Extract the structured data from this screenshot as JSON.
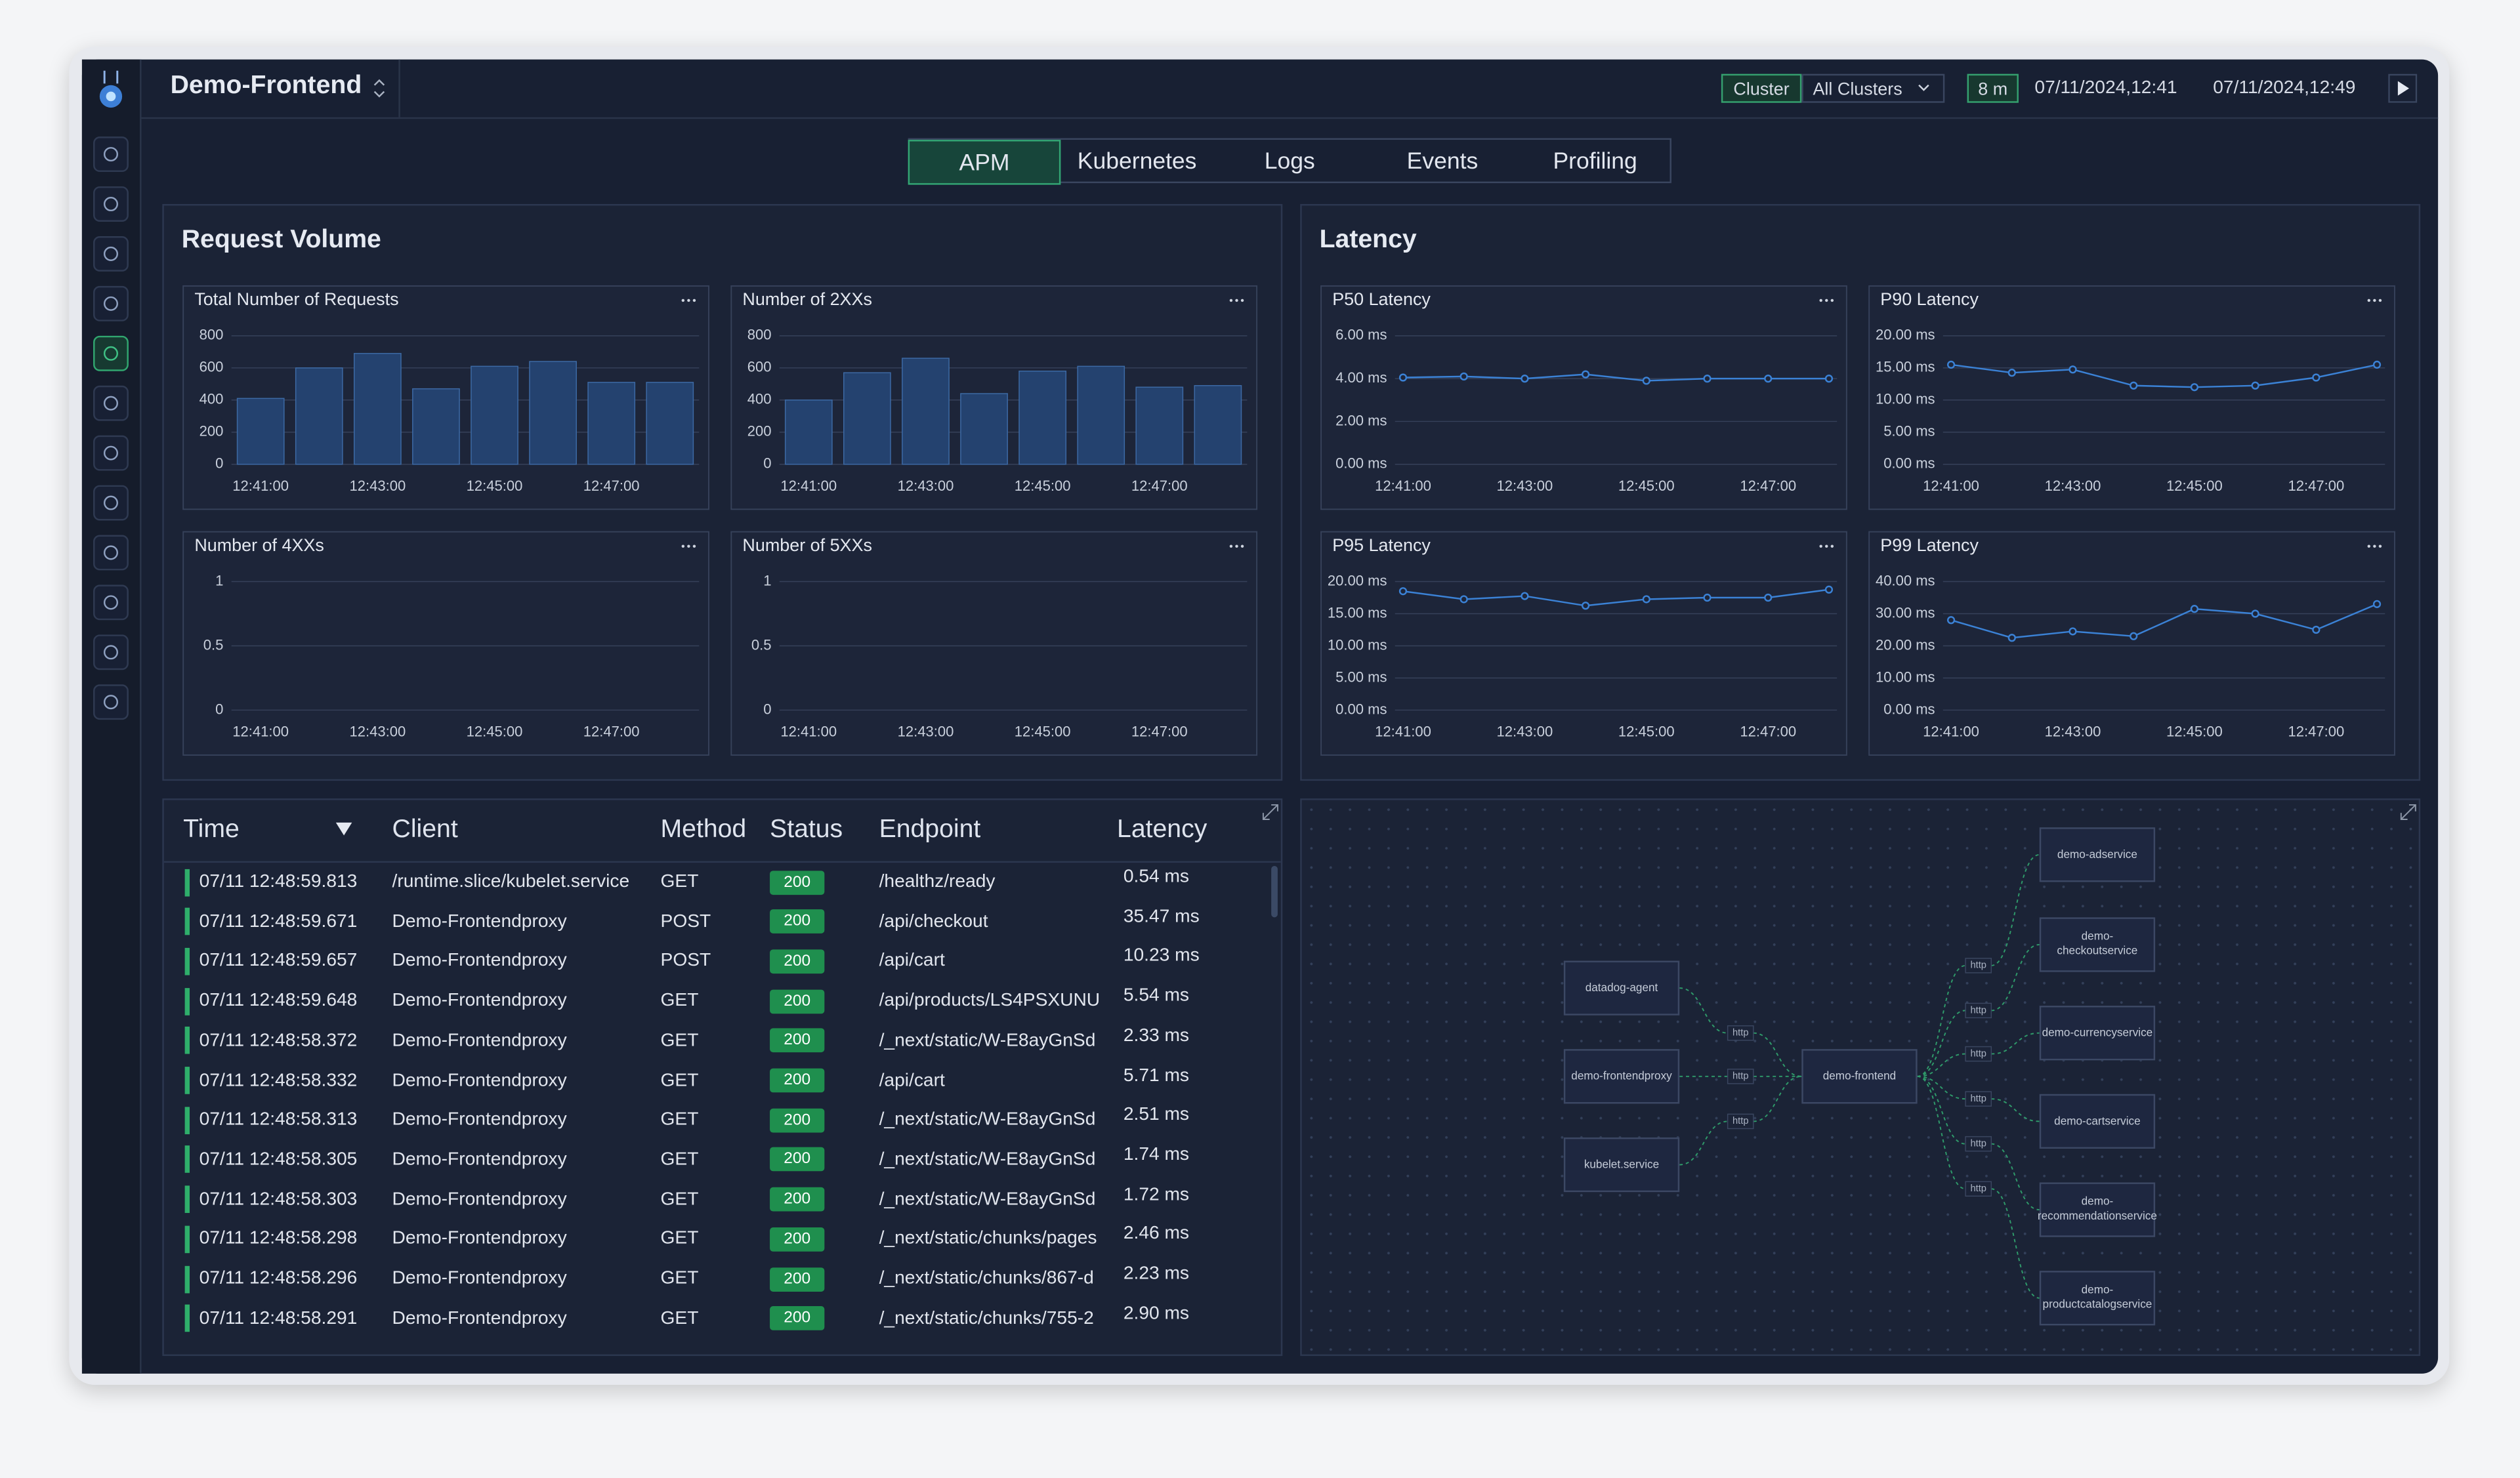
{
  "header": {
    "title": "Demo-Frontend",
    "cluster_label": "Cluster",
    "cluster_value": "All Clusters",
    "range": "8 m",
    "start": "07/11/2024,12:41",
    "end": "07/11/2024,12:49"
  },
  "tabs": [
    "APM",
    "Kubernetes",
    "Logs",
    "Events",
    "Profiling"
  ],
  "panels": {
    "request_volume": "Request Volume",
    "latency": "Latency"
  },
  "chart_data": [
    {
      "type": "bar",
      "title": "Total Number of Requests",
      "categories": [
        "12:41:00",
        null,
        "12:43:00",
        null,
        "12:45:00",
        null,
        "12:47:00",
        null
      ],
      "values": [
        410,
        600,
        690,
        470,
        610,
        640,
        510,
        510
      ],
      "color": "#24426f",
      "ylim": [
        0,
        800
      ],
      "yticks": [
        0,
        200,
        400,
        600,
        800
      ],
      "grid": true
    },
    {
      "type": "bar",
      "title": "Number of 2XXs",
      "categories": [
        "12:41:00",
        null,
        "12:43:00",
        null,
        "12:45:00",
        null,
        "12:47:00",
        null
      ],
      "values": [
        400,
        570,
        660,
        440,
        580,
        610,
        480,
        490
      ],
      "color": "#24426f",
      "ylim": [
        0,
        800
      ],
      "yticks": [
        0,
        200,
        400,
        600,
        800
      ],
      "grid": true
    },
    {
      "type": "bar",
      "title": "Number of 4XXs",
      "categories": [
        "12:41:00",
        null,
        "12:43:00",
        null,
        "12:45:00",
        null,
        "12:47:00",
        null
      ],
      "values": [
        0,
        0,
        0,
        0,
        0,
        0,
        0,
        0
      ],
      "color": "#24426f",
      "ylim": [
        0,
        1
      ],
      "yticks": [
        0,
        0.5,
        1
      ],
      "grid": true
    },
    {
      "type": "bar",
      "title": "Number of 5XXs",
      "categories": [
        "12:41:00",
        null,
        "12:43:00",
        null,
        "12:45:00",
        null,
        "12:47:00",
        null
      ],
      "values": [
        0,
        0,
        0,
        0,
        0,
        0,
        0,
        0
      ],
      "color": "#24426f",
      "ylim": [
        0,
        1
      ],
      "yticks": [
        0,
        0.5,
        1
      ],
      "grid": true
    },
    {
      "type": "line",
      "title": "P50 Latency",
      "categories": [
        "12:41:00",
        null,
        "12:43:00",
        null,
        "12:45:00",
        null,
        "12:47:00",
        null
      ],
      "values": [
        4.05,
        4.1,
        4.0,
        4.2,
        3.9,
        4.0,
        4.0,
        4.0
      ],
      "color": "#3b82d6",
      "ylim": [
        0,
        6
      ],
      "yticks": [
        {
          "value": 0,
          "label": "0.00 ms"
        },
        {
          "value": 2,
          "label": "2.00 ms"
        },
        {
          "value": 4,
          "label": "4.00 ms"
        },
        {
          "value": 6,
          "label": "6.00 ms"
        }
      ],
      "grid": true
    },
    {
      "type": "line",
      "title": "P90 Latency",
      "categories": [
        "12:41:00",
        null,
        "12:43:00",
        null,
        "12:45:00",
        null,
        "12:47:00",
        null
      ],
      "values": [
        15.5,
        14.25,
        14.75,
        12.25,
        12,
        12.25,
        13.5,
        15.5
      ],
      "color": "#3b82d6",
      "ylim": [
        0,
        20
      ],
      "yticks": [
        {
          "value": 0,
          "label": "0.00 ms"
        },
        {
          "value": 5,
          "label": "5.00 ms"
        },
        {
          "value": 10,
          "label": "10.00 ms"
        },
        {
          "value": 15,
          "label": "15.00 ms"
        },
        {
          "value": 20,
          "label": "20.00 ms"
        }
      ],
      "grid": true
    },
    {
      "type": "line",
      "title": "P95 Latency",
      "categories": [
        "12:41:00",
        null,
        "12:43:00",
        null,
        "12:45:00",
        null,
        "12:47:00",
        null
      ],
      "values": [
        18.5,
        17.25,
        17.75,
        16.25,
        17.25,
        17.5,
        17.5,
        18.75
      ],
      "color": "#3b82d6",
      "ylim": [
        0,
        20
      ],
      "yticks": [
        {
          "value": 0,
          "label": "0.00 ms"
        },
        {
          "value": 5,
          "label": "5.00 ms"
        },
        {
          "value": 10,
          "label": "10.00 ms"
        },
        {
          "value": 15,
          "label": "15.00 ms"
        },
        {
          "value": 20,
          "label": "20.00 ms"
        }
      ],
      "grid": true
    },
    {
      "type": "line",
      "title": "P99 Latency",
      "categories": [
        "12:41:00",
        null,
        "12:43:00",
        null,
        "12:45:00",
        null,
        "12:47:00",
        null
      ],
      "values": [
        28,
        22.5,
        24.5,
        23,
        31.5,
        30,
        25,
        33
      ],
      "color": "#3b82d6",
      "ylim": [
        0,
        40
      ],
      "yticks": [
        {
          "value": 0,
          "label": "0.00 ms"
        },
        {
          "value": 10,
          "label": "10.00 ms"
        },
        {
          "value": 20,
          "label": "20.00 ms"
        },
        {
          "value": 30,
          "label": "30.00 ms"
        },
        {
          "value": 40,
          "label": "40.00 ms"
        }
      ],
      "grid": true
    }
  ],
  "table": {
    "columns": [
      "Time",
      "Client",
      "Method",
      "Status",
      "Endpoint",
      "Latency"
    ],
    "rows": [
      [
        "07/11 12:48:59.813",
        "/runtime.slice/kubelet.service",
        "GET",
        200,
        "/healthz/ready",
        "0.54 ms"
      ],
      [
        "07/11 12:48:59.671",
        "Demo-Frontendproxy",
        "POST",
        200,
        "/api/checkout",
        "35.47 ms"
      ],
      [
        "07/11 12:48:59.657",
        "Demo-Frontendproxy",
        "POST",
        200,
        "/api/cart",
        "10.23 ms"
      ],
      [
        "07/11 12:48:59.648",
        "Demo-Frontendproxy",
        "GET",
        200,
        "/api/products/LS4PSXUNU",
        "5.54 ms"
      ],
      [
        "07/11 12:48:58.372",
        "Demo-Frontendproxy",
        "GET",
        200,
        "/_next/static/W-E8ayGnSd",
        "2.33 ms"
      ],
      [
        "07/11 12:48:58.332",
        "Demo-Frontendproxy",
        "GET",
        200,
        "/api/cart",
        "5.71 ms"
      ],
      [
        "07/11 12:48:58.313",
        "Demo-Frontendproxy",
        "GET",
        200,
        "/_next/static/W-E8ayGnSd",
        "2.51 ms"
      ],
      [
        "07/11 12:48:58.305",
        "Demo-Frontendproxy",
        "GET",
        200,
        "/_next/static/W-E8ayGnSd",
        "1.74 ms"
      ],
      [
        "07/11 12:48:58.303",
        "Demo-Frontendproxy",
        "GET",
        200,
        "/_next/static/W-E8ayGnSd",
        "1.72 ms"
      ],
      [
        "07/11 12:48:58.298",
        "Demo-Frontendproxy",
        "GET",
        200,
        "/_next/static/chunks/pages",
        "2.46 ms"
      ],
      [
        "07/11 12:48:58.296",
        "Demo-Frontendproxy",
        "GET",
        200,
        "/_next/static/chunks/867-d",
        "2.23 ms"
      ],
      [
        "07/11 12:48:58.291",
        "Demo-Frontendproxy",
        "GET",
        200,
        "/_next/static/chunks/755-2",
        "2.90 ms"
      ]
    ]
  },
  "service_map": {
    "nodes": [
      "datadog-agent",
      "demo-frontendproxy",
      "kubelet.service",
      "demo-frontend",
      "demo-adservice",
      "demo-checkoutservice",
      "demo-currencyservice",
      "demo-cartservice",
      "demo-recommendationservice",
      "demo-productcatalogservice"
    ],
    "edge_labels": [
      "http",
      "http",
      "http",
      "http",
      "http",
      "http",
      "http",
      "http",
      "http"
    ]
  }
}
